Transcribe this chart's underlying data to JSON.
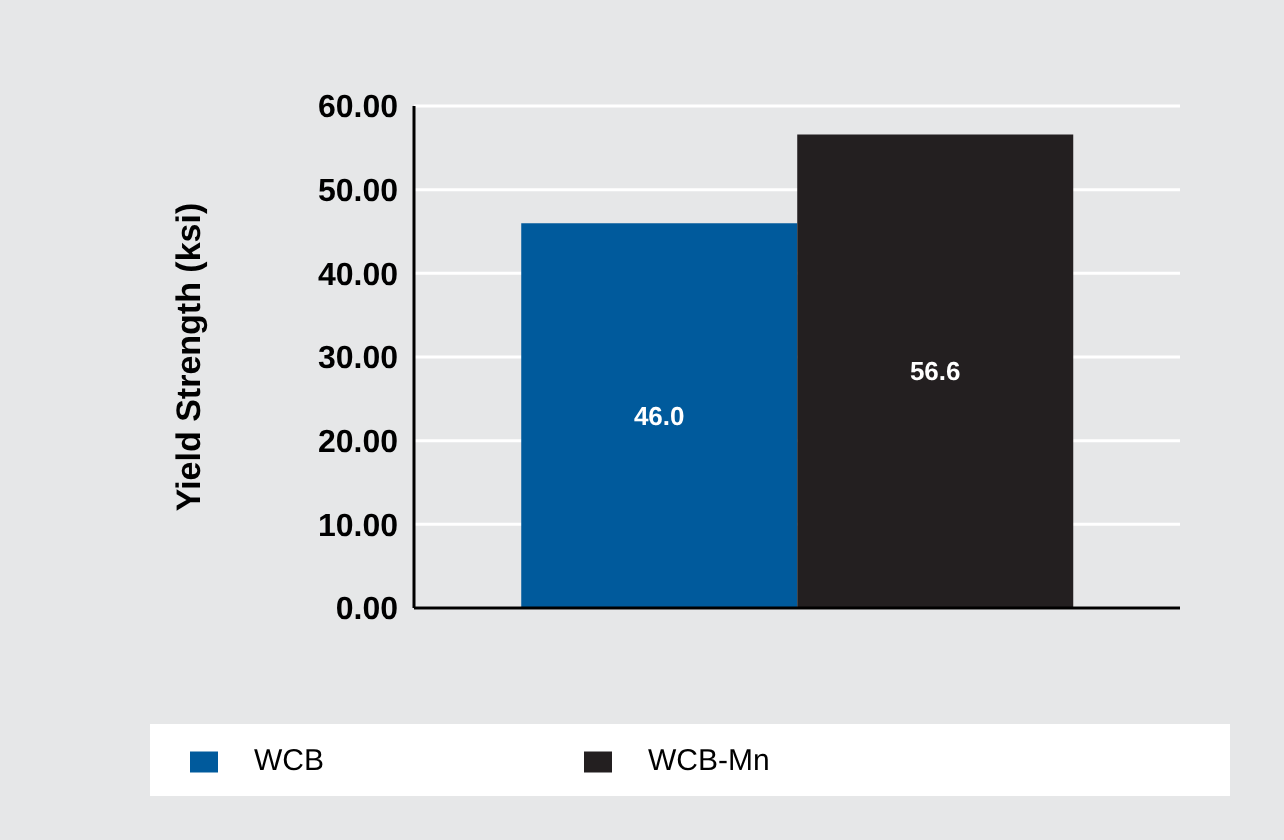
{
  "chart_data": {
    "type": "bar",
    "ylabel": "Yield Strength (ksi)",
    "categories": [
      null
    ],
    "series": [
      {
        "name": "WCB",
        "color": "#005a9c",
        "values": [
          46.0
        ],
        "value_labels": [
          "46.0"
        ]
      },
      {
        "name": "WCB-Mn",
        "color": "#231f20",
        "values": [
          56.6
        ],
        "value_labels": [
          "56.6"
        ]
      }
    ],
    "ylim": [
      0,
      60
    ],
    "yticks": [
      {
        "value": 0,
        "label": "0.00"
      },
      {
        "value": 10,
        "label": "10.00"
      },
      {
        "value": 20,
        "label": "20.00"
      },
      {
        "value": 30,
        "label": "30.00"
      },
      {
        "value": 40,
        "label": "40.00"
      },
      {
        "value": 50,
        "label": "50.00"
      },
      {
        "value": 60,
        "label": "60.00"
      }
    ],
    "grid": "y",
    "legend": "bottom"
  }
}
